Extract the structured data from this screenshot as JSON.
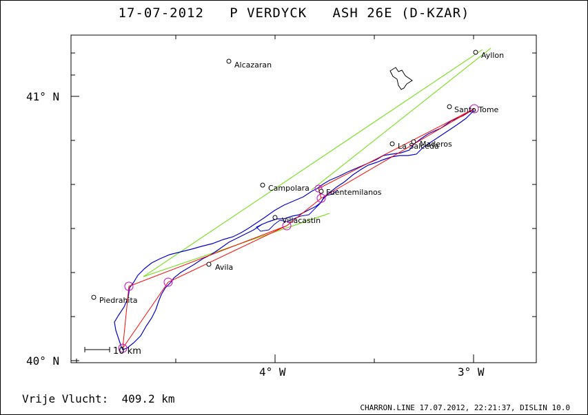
{
  "header": {
    "title": "17-07-2012   P VERDYCK   ASH 26E (D-KZAR)"
  },
  "footer": {
    "distance_text": "Vrije Vlucht:  409.2 km",
    "credit_text": "CHARRON.LINE 17.07.2012, 22:21:37, DISLIN 10.0"
  },
  "axes": {
    "lat_labels": [
      "41° N",
      "40° N"
    ],
    "lon_labels": [
      "4° W",
      "3° W"
    ]
  },
  "scale_bar": {
    "label": "10 km"
  },
  "places": [
    "Alcazaran",
    "Ayllon",
    "Santo Tome",
    "Maderos",
    "La Salceda",
    "Campolara",
    "Fuentemilanos",
    "Villacastin",
    "Avila",
    "Piedrahita"
  ],
  "colors": {
    "track": "#0000cc",
    "task": "#ff0000",
    "sector": "#66dd00",
    "turnpoint": "#cc00cc",
    "ink": "#000000"
  }
}
